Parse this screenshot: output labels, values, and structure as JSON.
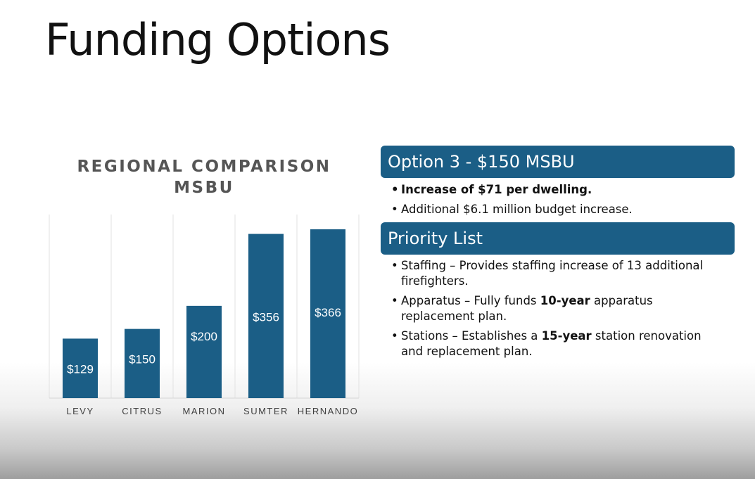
{
  "slide": {
    "title": "Funding Options"
  },
  "chart_data": {
    "type": "bar",
    "title_lines": [
      "REGIONAL COMPARISON",
      "MSBU"
    ],
    "categories": [
      "LEVY",
      "CITRUS",
      "MARION",
      "SUMTER",
      "HERNANDO"
    ],
    "values": [
      129,
      150,
      200,
      356,
      366
    ],
    "data_labels": [
      "$129",
      "$150",
      "$200",
      "$356",
      "$366"
    ],
    "xlabel": "",
    "ylabel": "",
    "ylim": [
      0,
      400
    ],
    "grid": "vertical",
    "bar_color": "#1b5e86"
  },
  "option": {
    "header": "Option 3 - $150 MSBU",
    "bullets": [
      {
        "text": "Increase of $71 per dwelling.",
        "bold": true
      },
      {
        "text": "Additional $6.1 million budget increase.",
        "bold": false
      }
    ]
  },
  "priority": {
    "header": "Priority List",
    "items": [
      {
        "before": "Staffing – Provides staffing increase of 13 additional firefighters.",
        "strong": "",
        "after": ""
      },
      {
        "before": "Apparatus – Fully funds ",
        "strong": "10-year",
        "after": " apparatus replacement plan."
      },
      {
        "before": "Stations – Establishes a ",
        "strong": "15-year",
        "after": "  station renovation and replacement plan."
      }
    ]
  },
  "colors": {
    "header_bg": "#1b5e86",
    "header_text": "#ffffff",
    "title_text": "#111111",
    "chart_title_text": "#555555"
  }
}
